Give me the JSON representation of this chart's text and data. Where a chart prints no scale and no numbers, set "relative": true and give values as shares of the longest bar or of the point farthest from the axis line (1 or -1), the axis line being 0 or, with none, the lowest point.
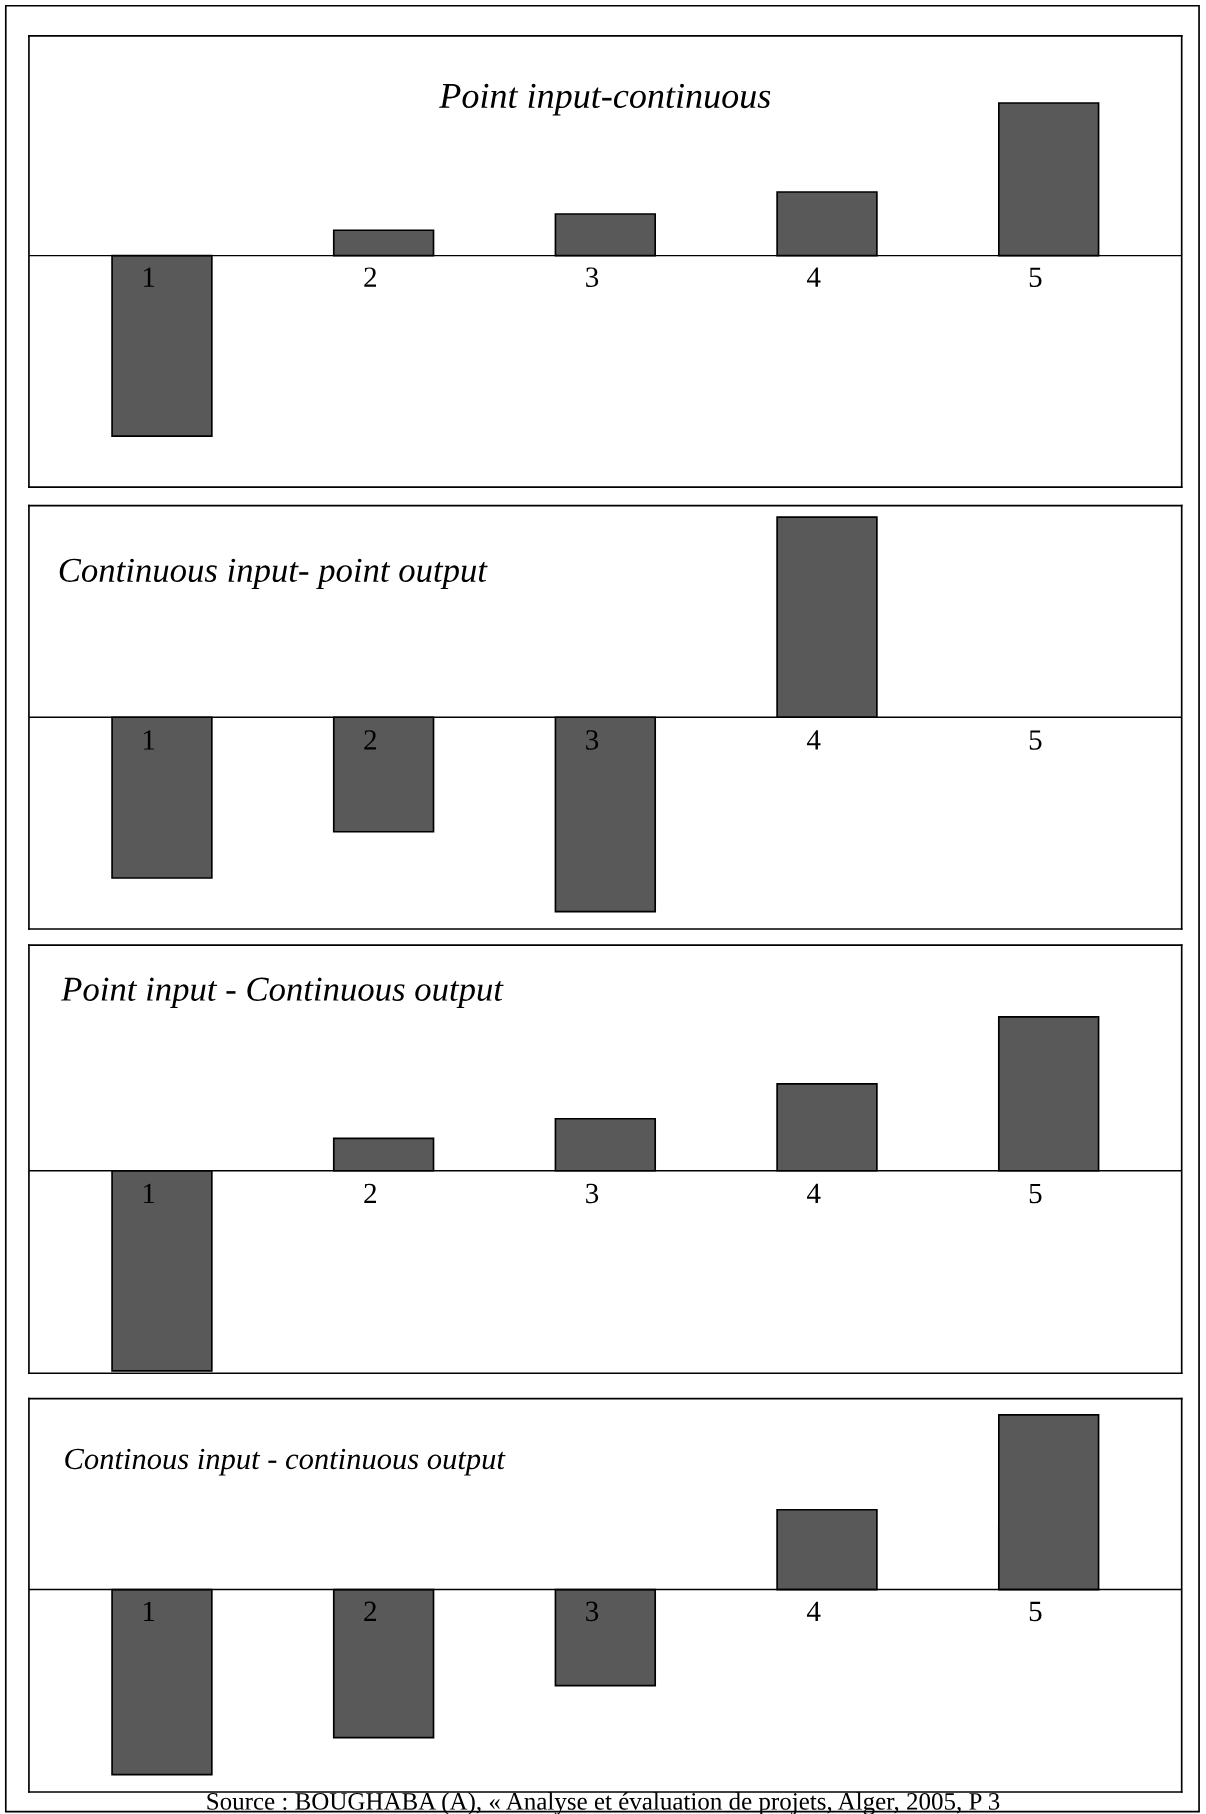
{
  "chart_data": [
    {
      "type": "bar",
      "title": "Point input-continuous",
      "relative": true,
      "categories": [
        "1",
        "2",
        "3",
        "4",
        "5"
      ],
      "values": [
        -1,
        0.141,
        0.231,
        0.353,
        0.846
      ],
      "color": "#595959"
    },
    {
      "type": "bar",
      "title": "Continuous input- point output",
      "relative": true,
      "categories": [
        "1",
        "2",
        "3",
        "4",
        "5"
      ],
      "values": [
        -0.803,
        -0.572,
        -0.971,
        1,
        null
      ],
      "color": "#595959"
    },
    {
      "type": "bar",
      "title": "Point input - Continuous output",
      "relative": true,
      "categories": [
        "1",
        "2",
        "3",
        "4",
        "5"
      ],
      "values": [
        -1,
        0.162,
        0.26,
        0.434,
        0.769
      ],
      "color": "#595959"
    },
    {
      "type": "bar",
      "title": "Continous input - continuous output",
      "relative": true,
      "categories": [
        "1",
        "2",
        "3",
        "4",
        "5"
      ],
      "values": [
        -1,
        -0.8,
        -0.519,
        0.431,
        0.944
      ],
      "color": "#595959",
      "annotations": [
        "Source : BOUGHABA (A), « Analyse et évaluation de projets, Alger, 2005, P 3"
      ]
    }
  ]
}
